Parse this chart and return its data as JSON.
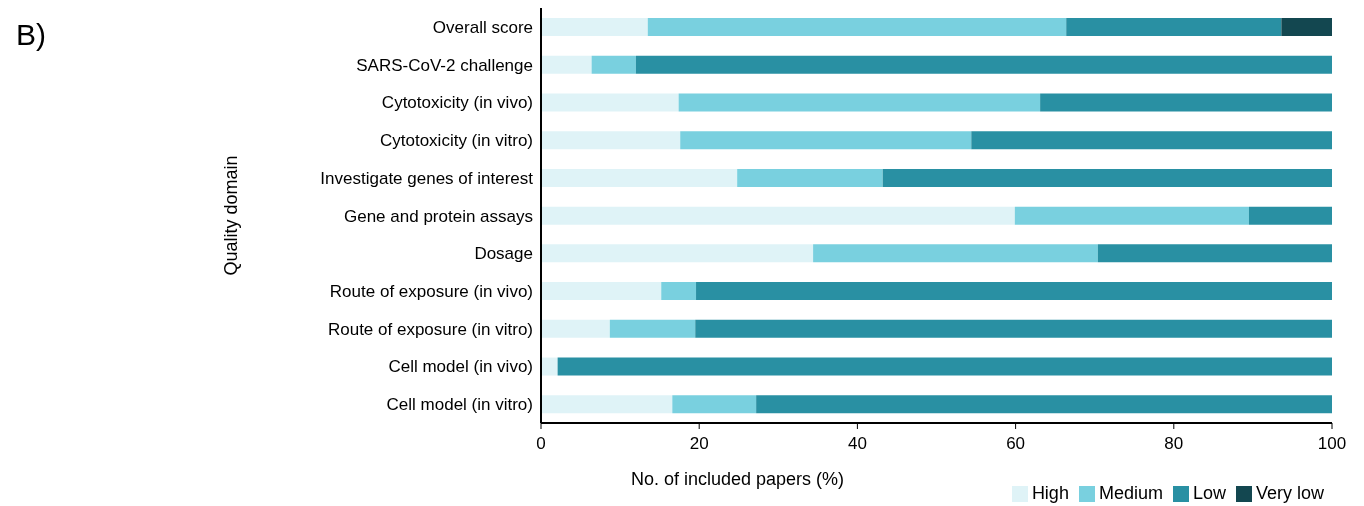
{
  "chart_data": {
    "type": "bar",
    "orientation": "horizontal",
    "stacked": true,
    "annotations": [
      "B)"
    ],
    "xlabel": "No. of included papers (%)",
    "ylabel": "Quality domain",
    "categories": [
      "Overall score",
      "SARS-CoV-2 challenge",
      "Cytotoxicity (in vivo)",
      "Cytotoxicity (in vitro)",
      "Investigate genes of interest",
      "Gene and protein assays",
      "Dosage",
      "Route of exposure (in vivo)",
      "Route of exposure (in vitro)",
      "Cell model (in vivo)",
      "Cell model (in vitro)"
    ],
    "series": [
      {
        "name": "High",
        "color": "#dff3f7",
        "values": [
          13.5,
          6.4,
          17.4,
          17.6,
          24.8,
          59.9,
          34.4,
          15.2,
          8.7,
          2.1,
          16.6
        ]
      },
      {
        "name": "Medium",
        "color": "#79d0df",
        "values": [
          52.9,
          5.6,
          45.7,
          36.8,
          18.4,
          29.6,
          36.0,
          4.4,
          10.8,
          null,
          10.6
        ]
      },
      {
        "name": "Low",
        "color": "#2990a3",
        "values": [
          27.2,
          88.0,
          36.9,
          45.6,
          56.8,
          10.5,
          29.6,
          80.4,
          80.5,
          97.9,
          72.8
        ]
      },
      {
        "name": "Very low",
        "color": "#134750",
        "values": [
          6.4,
          null,
          null,
          null,
          null,
          null,
          null,
          null,
          null,
          null,
          null
        ]
      }
    ],
    "xlim": [
      0,
      100
    ],
    "xticks": [
      0,
      20,
      40,
      60,
      80,
      100
    ],
    "grid": false,
    "legend": "bottom right"
  }
}
